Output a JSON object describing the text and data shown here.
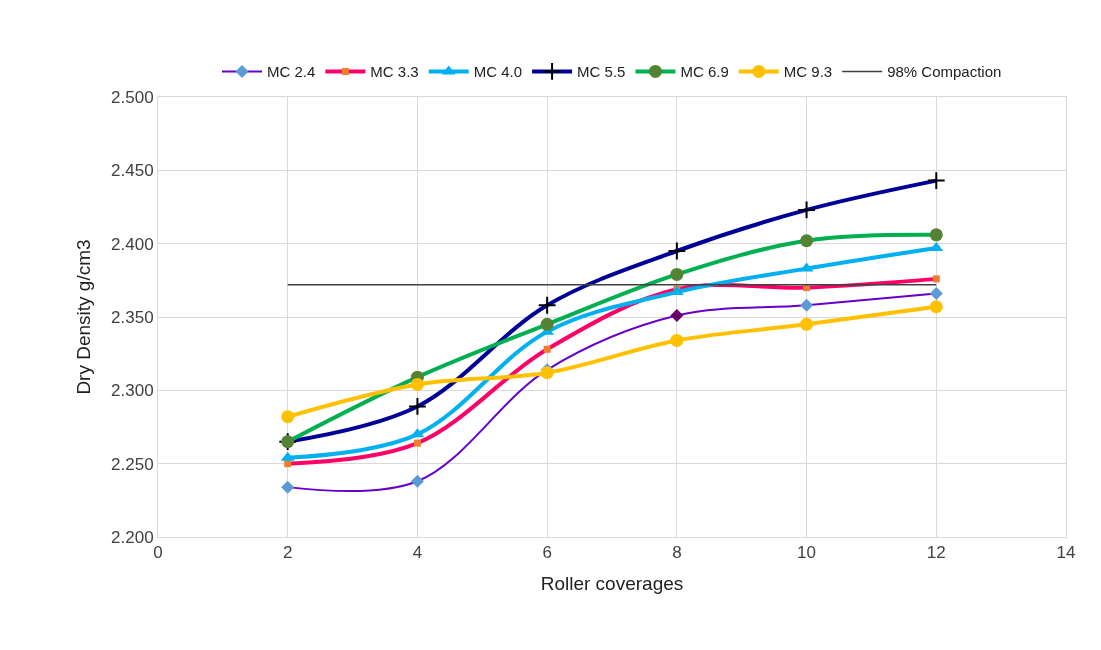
{
  "chart_data": {
    "type": "line",
    "xlabel": "Roller coverages",
    "ylabel": "Dry Density g/cm3",
    "x": [
      2,
      4,
      6,
      8,
      10,
      12
    ],
    "xlim": [
      0,
      14
    ],
    "xticks": [
      0,
      2,
      4,
      6,
      8,
      10,
      12,
      14
    ],
    "ylim": [
      2.2,
      2.5
    ],
    "yticks": [
      {
        "value": 2.2,
        "label": "2.200"
      },
      {
        "value": 2.25,
        "label": "2.250"
      },
      {
        "value": 2.3,
        "label": "2.300"
      },
      {
        "value": 2.35,
        "label": "2.350"
      },
      {
        "value": 2.4,
        "label": "2.400"
      },
      {
        "value": 2.45,
        "label": "2.450"
      },
      {
        "value": 2.5,
        "label": "2.500"
      }
    ],
    "grid": true,
    "legend": "top",
    "series": [
      {
        "name": "MC 2.4",
        "color": "#6600cc",
        "marker": "diamond",
        "colors": [
          "#5b9bd5",
          "#5b9bd5",
          "#5b9bd5",
          "#660066",
          "#5b9bd5",
          "#5b9bd5"
        ],
        "values": [
          2.234,
          2.238,
          2.314,
          2.351,
          2.358,
          2.366
        ]
      },
      {
        "name": "MC 3.3",
        "color": "#ff0066",
        "marker": "square",
        "colors": [
          "#ed7d31",
          "#ed7d31",
          "#ed7d31",
          "#ed7d31",
          "#ed7d31",
          "#ed7d31"
        ],
        "values": [
          2.25,
          2.264,
          2.328,
          2.369,
          2.37,
          2.376
        ]
      },
      {
        "name": "MC 4.0",
        "color": "#00b0f0",
        "marker": "triangle",
        "values": [
          2.254,
          2.27,
          2.34,
          2.367,
          2.383,
          2.397
        ]
      },
      {
        "name": "MC 5.5",
        "color": "#000099",
        "marker": "cross",
        "colors": [
          "#000000",
          "#000000",
          "#000000",
          "#000000",
          "#000000",
          "#000000"
        ],
        "values": [
          2.265,
          2.289,
          2.358,
          2.395,
          2.423,
          2.443
        ]
      },
      {
        "name": "MC 6.9",
        "color": "#00b050",
        "marker": "circle",
        "colors": [
          "#548235",
          "#548235",
          "#548235",
          "#548235",
          "#548235",
          "#548235"
        ],
        "values": [
          2.265,
          2.309,
          2.345,
          2.379,
          2.402,
          2.406
        ]
      },
      {
        "name": "MC 9.3",
        "color": "#ffc000",
        "marker": "circle",
        "values": [
          2.282,
          2.304,
          2.312,
          2.334,
          2.345,
          2.357
        ]
      },
      {
        "name": "98% Compaction",
        "color": "#404040",
        "marker": "none",
        "values": [
          2.372,
          2.372,
          2.372,
          2.372,
          2.372,
          2.372
        ]
      }
    ]
  }
}
